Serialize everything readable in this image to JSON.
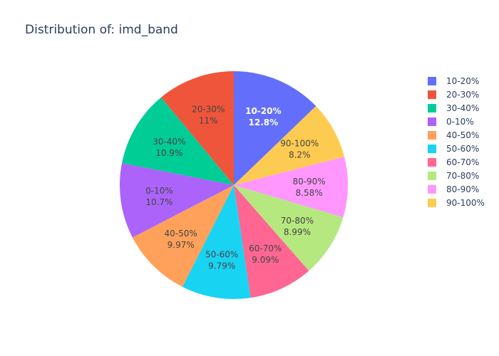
{
  "chart_data": {
    "type": "pie",
    "title": "Distribution of: imd_band",
    "direction": "clockwise",
    "start_angle_deg": 0,
    "slices": [
      {
        "label": "10-20%",
        "value": 12.8,
        "text": "12.8%",
        "color": "#636efa",
        "text_color": "#ffffff",
        "bold": true
      },
      {
        "label": "90-100%",
        "value": 8.2,
        "text": "8.2%",
        "color": "#fecb52",
        "text_color": "#444444"
      },
      {
        "label": "80-90%",
        "value": 8.58,
        "text": "8.58%",
        "color": "#ff97ff",
        "text_color": "#444444"
      },
      {
        "label": "70-80%",
        "value": 8.99,
        "text": "8.99%",
        "color": "#b6e880",
        "text_color": "#444444"
      },
      {
        "label": "60-70%",
        "value": 9.09,
        "text": "9.09%",
        "color": "#ff6692",
        "text_color": "#444444"
      },
      {
        "label": "50-60%",
        "value": 9.79,
        "text": "9.79%",
        "color": "#19d3f3",
        "text_color": "#444444"
      },
      {
        "label": "40-50%",
        "value": 9.97,
        "text": "9.97%",
        "color": "#ffa15a",
        "text_color": "#444444"
      },
      {
        "label": "0-10%",
        "value": 10.7,
        "text": "10.7%",
        "color": "#ab63fa",
        "text_color": "#444444"
      },
      {
        "label": "30-40%",
        "value": 10.9,
        "text": "10.9%",
        "color": "#00cc96",
        "text_color": "#444444"
      },
      {
        "label": "20-30%",
        "value": 11,
        "text": "11%",
        "color": "#ef553b",
        "text_color": "#444444"
      }
    ],
    "legend": {
      "placement": "right",
      "entries": [
        {
          "label": "10-20%",
          "color": "#636efa"
        },
        {
          "label": "20-30%",
          "color": "#ef553b"
        },
        {
          "label": "30-40%",
          "color": "#00cc96"
        },
        {
          "label": "0-10%",
          "color": "#ab63fa"
        },
        {
          "label": "40-50%",
          "color": "#ffa15a"
        },
        {
          "label": "50-60%",
          "color": "#19d3f3"
        },
        {
          "label": "60-70%",
          "color": "#ff6692"
        },
        {
          "label": "70-80%",
          "color": "#b6e880"
        },
        {
          "label": "80-90%",
          "color": "#ff97ff"
        },
        {
          "label": "90-100%",
          "color": "#fecb52"
        }
      ]
    }
  }
}
